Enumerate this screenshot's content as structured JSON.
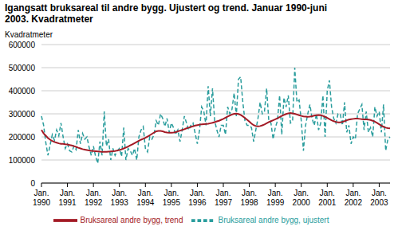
{
  "chart_data": {
    "type": "line",
    "title": "Igangsatt bruksareal til andre bygg. Ujustert og trend. Januar 1990-juni 2003. Kvadratmeter",
    "y_label": "Kvadratmeter",
    "categories": [
      "Jan. 1990",
      null,
      null,
      null,
      null,
      null,
      null,
      null,
      null,
      null,
      null,
      null,
      "Jan. 1991",
      null,
      null,
      null,
      null,
      null,
      null,
      null,
      null,
      null,
      null,
      null,
      "Jan. 1992",
      null,
      null,
      null,
      null,
      null,
      null,
      null,
      null,
      null,
      null,
      null,
      "Jan. 1993",
      null,
      null,
      null,
      null,
      null,
      null,
      null,
      null,
      null,
      null,
      null,
      "Jan. 1994",
      null,
      null,
      null,
      null,
      null,
      null,
      null,
      null,
      null,
      null,
      null,
      "Jan. 1995",
      null,
      null,
      null,
      null,
      null,
      null,
      null,
      null,
      null,
      null,
      null,
      "Jan. 1996",
      null,
      null,
      null,
      null,
      null,
      null,
      null,
      null,
      null,
      null,
      null,
      "Jan. 1997",
      null,
      null,
      null,
      null,
      null,
      null,
      null,
      null,
      null,
      null,
      null,
      "Jan. 1998",
      null,
      null,
      null,
      null,
      null,
      null,
      null,
      null,
      null,
      null,
      null,
      "Jan. 1999",
      null,
      null,
      null,
      null,
      null,
      null,
      null,
      null,
      null,
      null,
      null,
      "Jan. 2000",
      null,
      null,
      null,
      null,
      null,
      null,
      null,
      null,
      null,
      null,
      null,
      "Jan. 2001",
      null,
      null,
      null,
      null,
      null,
      null,
      null,
      null,
      null,
      null,
      null,
      "Jan. 2002",
      null,
      null,
      null,
      null,
      null,
      null,
      null,
      null,
      null,
      null,
      null,
      "Jan. 2003",
      null,
      null,
      null,
      null,
      null
    ],
    "series": [
      {
        "name": "Bruksareal andre bygg, ujustert",
        "color": "#2a9d9d",
        "line_style": "dashed",
        "values": [
          290000,
          250000,
          175000,
          120000,
          165000,
          210000,
          185000,
          230000,
          205000,
          260000,
          200000,
          150000,
          170000,
          140000,
          135000,
          160000,
          145000,
          230000,
          170000,
          215000,
          190000,
          200000,
          155000,
          120000,
          160000,
          115000,
          85000,
          180000,
          120000,
          310000,
          160000,
          190000,
          100000,
          150000,
          120000,
          140000,
          150000,
          115000,
          240000,
          100000,
          150000,
          140000,
          120000,
          150000,
          100000,
          200000,
          230000,
          245000,
          150000,
          135000,
          200000,
          190000,
          210000,
          270000,
          250000,
          300000,
          280000,
          245000,
          280000,
          220000,
          260000,
          240000,
          210000,
          230000,
          180000,
          230000,
          290000,
          260000,
          230000,
          250000,
          260000,
          215000,
          170000,
          230000,
          330000,
          310000,
          250000,
          420000,
          290000,
          410000,
          270000,
          230000,
          200000,
          250000,
          250000,
          210000,
          330000,
          300000,
          320000,
          390000,
          290000,
          450000,
          460000,
          350000,
          270000,
          250000,
          250000,
          240000,
          180000,
          230000,
          280000,
          350000,
          300000,
          310000,
          410000,
          270000,
          260000,
          190000,
          240000,
          270000,
          380000,
          210000,
          370000,
          330000,
          380000,
          260000,
          270000,
          500000,
          350000,
          360000,
          270000,
          140000,
          250000,
          300000,
          340000,
          280000,
          250000,
          300000,
          230000,
          260000,
          380000,
          200000,
          400000,
          445000,
          330000,
          280000,
          260000,
          300000,
          300000,
          250000,
          350000,
          220000,
          250000,
          170000,
          200000,
          190000,
          300000,
          320000,
          340000,
          230000,
          310000,
          220000,
          240000,
          200000,
          330000,
          290000,
          310000,
          220000,
          340000,
          140000,
          190000,
          200000
        ]
      },
      {
        "name": "Bruksareal andre bygg, trend",
        "color": "#a31a25",
        "line_style": "solid",
        "values": [
          230000,
          215000,
          205000,
          195000,
          188000,
          182000,
          178000,
          175000,
          172000,
          170000,
          170000,
          168000,
          167000,
          165000,
          163000,
          160000,
          157000,
          153000,
          150000,
          147000,
          145000,
          143000,
          141000,
          140000,
          139000,
          138000,
          137000,
          136000,
          135000,
          135000,
          135000,
          136000,
          137000,
          138000,
          139000,
          141000,
          143000,
          146000,
          150000,
          154000,
          158000,
          163000,
          168000,
          173000,
          178000,
          183000,
          188000,
          192000,
          196000,
          201000,
          207000,
          213000,
          219000,
          224000,
          226000,
          226000,
          224000,
          221000,
          219000,
          218000,
          218000,
          219000,
          221000,
          224000,
          227000,
          230000,
          233000,
          237000,
          240000,
          243000,
          246000,
          249000,
          251000,
          253000,
          254000,
          255000,
          256000,
          257000,
          259000,
          261000,
          264000,
          267000,
          270000,
          274000,
          278000,
          283000,
          288000,
          293000,
          297000,
          300000,
          301000,
          299000,
          295000,
          289000,
          282000,
          274000,
          266000,
          258000,
          251000,
          247000,
          246000,
          247000,
          250000,
          254000,
          259000,
          264000,
          268000,
          272000,
          276000,
          281000,
          286000,
          291000,
          295000,
          299000,
          302000,
          303000,
          302000,
          300000,
          297000,
          294000,
          291000,
          289000,
          288000,
          287000,
          288000,
          290000,
          292000,
          294000,
          295000,
          294000,
          291000,
          287000,
          282000,
          277000,
          272000,
          268000,
          265000,
          263000,
          263000,
          265000,
          268000,
          272000,
          275000,
          277000,
          278000,
          279000,
          279000,
          278000,
          277000,
          276000,
          276000,
          275000,
          273000,
          270000,
          266000,
          261000,
          255000,
          249000,
          244000,
          240000,
          238000,
          237000
        ]
      }
    ],
    "ylim": [
      0,
      600000
    ],
    "yticks": [
      0,
      100000,
      200000,
      300000,
      400000,
      500000,
      600000
    ],
    "grid": true,
    "legend": "bottom"
  }
}
